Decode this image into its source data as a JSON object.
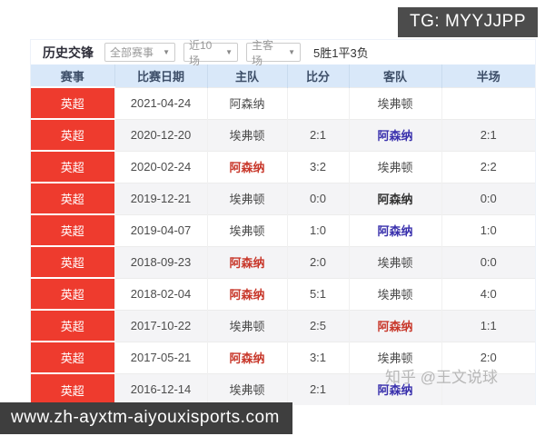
{
  "overlays": {
    "tg_badge": "TG: MYYJJPP",
    "watermark": "知乎 @王文说球",
    "site_url": "www.zh-ayxtm-aiyouxisports.com"
  },
  "filter_bar": {
    "title": "历史交锋",
    "dropdowns": [
      {
        "value": "全部赛事"
      },
      {
        "value": "近10场"
      },
      {
        "value": "主客场"
      }
    ],
    "summary": "5胜1平3负"
  },
  "table": {
    "headers": [
      "赛事",
      "比赛日期",
      "主队",
      "比分",
      "客队",
      "半场"
    ],
    "rows": [
      {
        "league": "英超",
        "date": "2021-04-24",
        "home": "阿森纳",
        "home_style": "plain",
        "score": "",
        "away": "埃弗顿",
        "away_style": "plain",
        "half": ""
      },
      {
        "league": "英超",
        "date": "2020-12-20",
        "home": "埃弗顿",
        "home_style": "plain",
        "score": "2:1",
        "away": "阿森纳",
        "away_style": "loss",
        "half": "2:1"
      },
      {
        "league": "英超",
        "date": "2020-02-24",
        "home": "阿森纳",
        "home_style": "win",
        "score": "3:2",
        "away": "埃弗顿",
        "away_style": "plain",
        "half": "2:2"
      },
      {
        "league": "英超",
        "date": "2019-12-21",
        "home": "埃弗顿",
        "home_style": "plain",
        "score": "0:0",
        "away": "阿森纳",
        "away_style": "draw",
        "half": "0:0"
      },
      {
        "league": "英超",
        "date": "2019-04-07",
        "home": "埃弗顿",
        "home_style": "plain",
        "score": "1:0",
        "away": "阿森纳",
        "away_style": "loss",
        "half": "1:0"
      },
      {
        "league": "英超",
        "date": "2018-09-23",
        "home": "阿森纳",
        "home_style": "win",
        "score": "2:0",
        "away": "埃弗顿",
        "away_style": "plain",
        "half": "0:0"
      },
      {
        "league": "英超",
        "date": "2018-02-04",
        "home": "阿森纳",
        "home_style": "win",
        "score": "5:1",
        "away": "埃弗顿",
        "away_style": "plain",
        "half": "4:0"
      },
      {
        "league": "英超",
        "date": "2017-10-22",
        "home": "埃弗顿",
        "home_style": "plain",
        "score": "2:5",
        "away": "阿森纳",
        "away_style": "win",
        "half": "1:1"
      },
      {
        "league": "英超",
        "date": "2017-05-21",
        "home": "阿森纳",
        "home_style": "win",
        "score": "3:1",
        "away": "埃弗顿",
        "away_style": "plain",
        "half": "2:0"
      },
      {
        "league": "英超",
        "date": "2016-12-14",
        "home": "埃弗顿",
        "home_style": "plain",
        "score": "2:1",
        "away": "阿森纳",
        "away_style": "loss",
        "half": ""
      }
    ]
  },
  "colors": {
    "league_badge_red": "#ee3b2e",
    "win_red": "#c8382b",
    "loss_blue": "#3a31ad",
    "draw_black": "#333333",
    "header_blue_bg": "#d9e8f9"
  }
}
